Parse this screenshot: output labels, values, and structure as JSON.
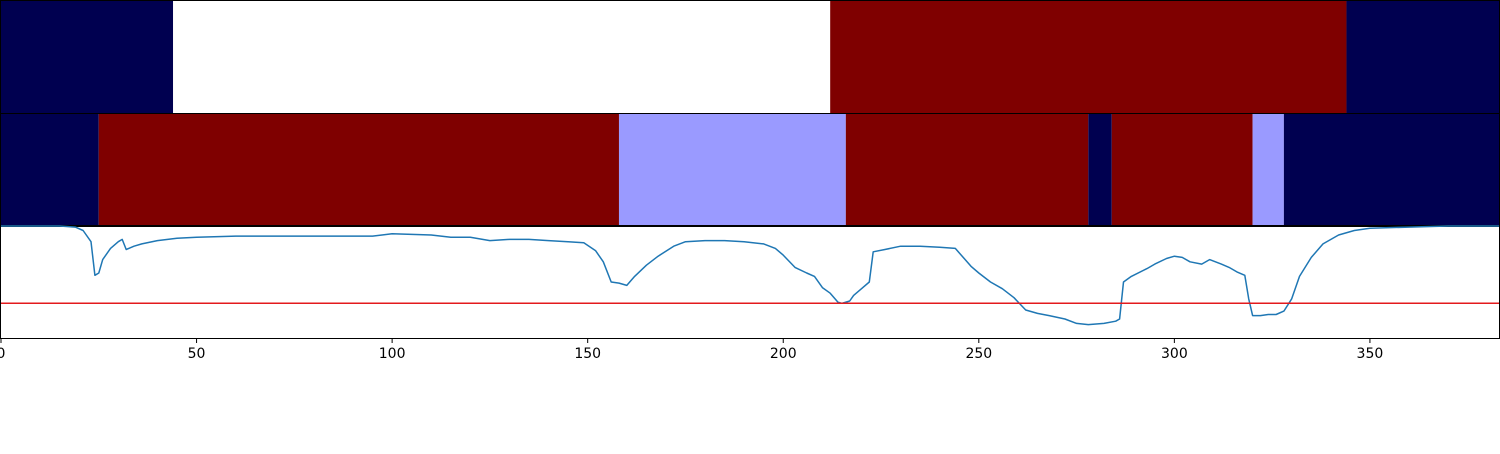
{
  "chart_data": {
    "type": "line",
    "title": "",
    "xlabel": "",
    "ylabel": "",
    "xlim": [
      0,
      383
    ],
    "ylim": [
      0,
      1
    ],
    "x_ticks": [
      0,
      50,
      100,
      150,
      200,
      250,
      300,
      350
    ],
    "x_tick_labels": [
      "0",
      "50",
      "100",
      "150",
      "200",
      "250",
      "300",
      "350"
    ],
    "grid": false,
    "state_bands": [
      {
        "name": "",
        "segments": [
          {
            "start": 0,
            "end": 44,
            "color": "#000050"
          },
          {
            "start": 44,
            "end": 212,
            "color": "#ffffff"
          },
          {
            "start": 212,
            "end": 344,
            "color": "#7f0000"
          },
          {
            "start": 344,
            "end": 383,
            "color": "#000050"
          }
        ]
      },
      {
        "name": "",
        "segments": [
          {
            "start": 0,
            "end": 25,
            "color": "#000050"
          },
          {
            "start": 25,
            "end": 158,
            "color": "#7f0000"
          },
          {
            "start": 158,
            "end": 216,
            "color": "#9a9aff"
          },
          {
            "start": 216,
            "end": 278,
            "color": "#7f0000"
          },
          {
            "start": 278,
            "end": 284,
            "color": "#000050"
          },
          {
            "start": 284,
            "end": 320,
            "color": "#7f0000"
          },
          {
            "start": 320,
            "end": 328,
            "color": "#9a9aff"
          },
          {
            "start": 328,
            "end": 383,
            "color": "#000050"
          }
        ]
      }
    ],
    "series": [
      {
        "color": "#1f77b4",
        "points": [
          [
            0,
            1.0
          ],
          [
            15,
            1.0
          ],
          [
            19,
            0.99
          ],
          [
            21,
            0.96
          ],
          [
            23,
            0.86
          ],
          [
            24,
            0.56
          ],
          [
            25,
            0.58
          ],
          [
            26,
            0.7
          ],
          [
            28,
            0.8
          ],
          [
            30,
            0.86
          ],
          [
            31,
            0.88
          ],
          [
            32,
            0.79
          ],
          [
            34,
            0.82
          ],
          [
            36,
            0.84
          ],
          [
            40,
            0.87
          ],
          [
            45,
            0.89
          ],
          [
            50,
            0.9
          ],
          [
            60,
            0.91
          ],
          [
            70,
            0.91
          ],
          [
            80,
            0.91
          ],
          [
            95,
            0.91
          ],
          [
            100,
            0.93
          ],
          [
            110,
            0.92
          ],
          [
            115,
            0.9
          ],
          [
            120,
            0.9
          ],
          [
            125,
            0.87
          ],
          [
            130,
            0.88
          ],
          [
            135,
            0.88
          ],
          [
            140,
            0.87
          ],
          [
            145,
            0.86
          ],
          [
            149,
            0.85
          ],
          [
            152,
            0.78
          ],
          [
            154,
            0.68
          ],
          [
            156,
            0.5
          ],
          [
            158,
            0.49
          ],
          [
            160,
            0.47
          ],
          [
            162,
            0.55
          ],
          [
            165,
            0.65
          ],
          [
            168,
            0.73
          ],
          [
            172,
            0.82
          ],
          [
            175,
            0.86
          ],
          [
            180,
            0.87
          ],
          [
            185,
            0.87
          ],
          [
            190,
            0.86
          ],
          [
            195,
            0.84
          ],
          [
            198,
            0.8
          ],
          [
            200,
            0.74
          ],
          [
            203,
            0.63
          ],
          [
            206,
            0.58
          ],
          [
            208,
            0.55
          ],
          [
            210,
            0.45
          ],
          [
            212,
            0.4
          ],
          [
            214,
            0.32
          ],
          [
            215,
            0.31
          ],
          [
            217,
            0.33
          ],
          [
            218,
            0.38
          ],
          [
            220,
            0.44
          ],
          [
            222,
            0.5
          ],
          [
            223,
            0.77
          ],
          [
            226,
            0.79
          ],
          [
            230,
            0.82
          ],
          [
            235,
            0.82
          ],
          [
            240,
            0.81
          ],
          [
            244,
            0.8
          ],
          [
            246,
            0.72
          ],
          [
            248,
            0.64
          ],
          [
            250,
            0.58
          ],
          [
            253,
            0.5
          ],
          [
            256,
            0.44
          ],
          [
            259,
            0.36
          ],
          [
            262,
            0.25
          ],
          [
            265,
            0.22
          ],
          [
            268,
            0.2
          ],
          [
            272,
            0.17
          ],
          [
            275,
            0.13
          ],
          [
            278,
            0.12
          ],
          [
            282,
            0.13
          ],
          [
            285,
            0.15
          ],
          [
            286,
            0.17
          ],
          [
            287,
            0.5
          ],
          [
            289,
            0.55
          ],
          [
            293,
            0.62
          ],
          [
            295,
            0.66
          ],
          [
            298,
            0.71
          ],
          [
            300,
            0.73
          ],
          [
            302,
            0.72
          ],
          [
            304,
            0.68
          ],
          [
            307,
            0.66
          ],
          [
            309,
            0.7
          ],
          [
            312,
            0.66
          ],
          [
            314,
            0.63
          ],
          [
            316,
            0.59
          ],
          [
            318,
            0.56
          ],
          [
            319,
            0.35
          ],
          [
            320,
            0.2
          ],
          [
            322,
            0.2
          ],
          [
            324,
            0.21
          ],
          [
            326,
            0.21
          ],
          [
            328,
            0.24
          ],
          [
            330,
            0.35
          ],
          [
            332,
            0.55
          ],
          [
            335,
            0.72
          ],
          [
            338,
            0.84
          ],
          [
            342,
            0.92
          ],
          [
            346,
            0.96
          ],
          [
            350,
            0.98
          ],
          [
            360,
            0.99
          ],
          [
            370,
            1.0
          ],
          [
            383,
            1.0
          ]
        ]
      }
    ],
    "reference_lines": [
      {
        "y": 0.31,
        "color": "#e31a1c"
      }
    ]
  }
}
